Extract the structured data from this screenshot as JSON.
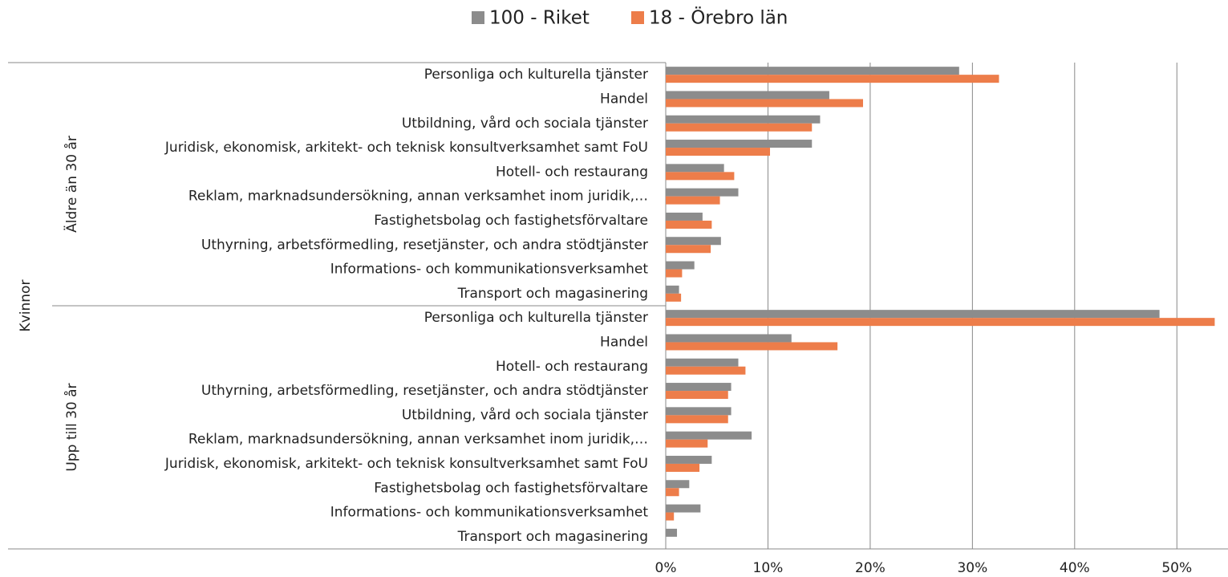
{
  "chart_data": {
    "type": "hbar",
    "outer_group": "Kvinnor",
    "groups": [
      {
        "name": "Äldre än 30 år",
        "categories": [
          "Personliga och kulturella tjänster",
          "Handel",
          "Utbildning, vård och sociala tjänster",
          "Juridisk, ekonomisk, arkitekt- och teknisk konsultverksamhet samt FoU",
          "Hotell- och restaurang",
          "Reklam, marknadsundersökning, annan verksamhet inom juridik,…",
          "Fastighetsbolag och fastighetsförvaltare",
          "Uthyrning, arbetsförmedling, resetjänster, och andra stödtjänster",
          "Informations- och kommunikationsverksamhet",
          "Transport och magasinering"
        ]
      },
      {
        "name": "Upp till 30 år",
        "categories": [
          "Personliga och kulturella tjänster",
          "Handel",
          "Hotell- och restaurang",
          "Uthyrning, arbetsförmedling, resetjänster, och andra stödtjänster",
          "Utbildning, vård och sociala tjänster",
          "Reklam, marknadsundersökning, annan verksamhet inom juridik,…",
          "Juridisk, ekonomisk, arkitekt- och teknisk konsultverksamhet samt FoU",
          "Fastighetsbolag och fastighetsförvaltare",
          "Informations- och kommunikationsverksamhet",
          "Transport och magasinering"
        ]
      }
    ],
    "series": [
      {
        "name": "100 - Riket",
        "color": "#8c8c8c",
        "values": [
          28.7,
          16.0,
          15.1,
          14.3,
          5.7,
          7.1,
          3.6,
          5.4,
          2.8,
          1.3,
          48.3,
          12.3,
          7.1,
          6.4,
          6.4,
          8.4,
          4.5,
          2.3,
          3.4,
          1.1
        ]
      },
      {
        "name": "18 - Örebro län",
        "color": "#ed7d4a",
        "values": [
          32.6,
          19.3,
          14.3,
          10.2,
          6.7,
          5.3,
          4.5,
          4.4,
          1.6,
          1.5,
          53.7,
          16.8,
          7.8,
          6.1,
          6.1,
          4.1,
          3.3,
          1.3,
          0.8,
          0
        ]
      }
    ],
    "xlim": [
      0,
      55
    ],
    "xticks": [
      {
        "value": 0,
        "label": "0%"
      },
      {
        "value": 10,
        "label": "10%"
      },
      {
        "value": 20,
        "label": "20%"
      },
      {
        "value": 30,
        "label": "30%"
      },
      {
        "value": 40,
        "label": "40%"
      },
      {
        "value": 50,
        "label": "50%"
      }
    ],
    "grid": true,
    "legend": "top"
  }
}
